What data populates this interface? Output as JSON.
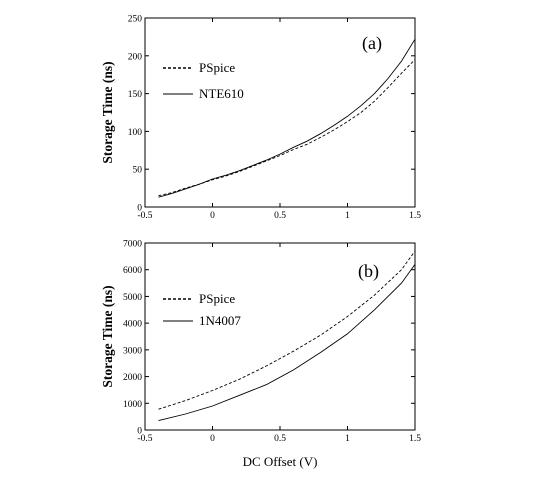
{
  "figure": {
    "xlabel": "DC Offset (V)"
  },
  "chart_data": [
    {
      "type": "line",
      "panel_label": "(a)",
      "xlabel": "",
      "ylabel": "Storage Time (ns)",
      "xlim": [
        -0.5,
        1.5
      ],
      "ylim": [
        0,
        250
      ],
      "xticks": [
        "-0.5",
        "0",
        "0.5",
        "1",
        "1.5"
      ],
      "yticks": [
        "0",
        "50",
        "100",
        "150",
        "200",
        "250"
      ],
      "grid": false,
      "legend_position": "upper-left",
      "series": [
        {
          "name": "PSpice",
          "style": "dashed",
          "x": [
            -0.4,
            -0.3,
            -0.2,
            -0.1,
            0,
            0.1,
            0.2,
            0.3,
            0.4,
            0.5,
            0.6,
            0.7,
            0.8,
            0.9,
            1.0,
            1.1,
            1.2,
            1.3,
            1.4,
            1.5
          ],
          "y": [
            15,
            19,
            25,
            30,
            36,
            41,
            47,
            54,
            61,
            68,
            76,
            83,
            92,
            102,
            113,
            125,
            140,
            158,
            177,
            195
          ]
        },
        {
          "name": "NTE610",
          "style": "solid",
          "x": [
            -0.4,
            -0.3,
            -0.2,
            -0.1,
            0,
            0.1,
            0.2,
            0.3,
            0.4,
            0.5,
            0.6,
            0.7,
            0.8,
            0.9,
            1.0,
            1.1,
            1.2,
            1.3,
            1.4,
            1.5
          ],
          "y": [
            13,
            18,
            24,
            30,
            37,
            42,
            48,
            55,
            62,
            70,
            79,
            87,
            97,
            108,
            120,
            134,
            150,
            170,
            193,
            222
          ]
        }
      ]
    },
    {
      "type": "line",
      "panel_label": "(b)",
      "xlabel": "DC Offset (V)",
      "ylabel": "Storage Time (ns)",
      "xlim": [
        -0.5,
        1.5
      ],
      "ylim": [
        0,
        7000
      ],
      "xticks": [
        "-0.5",
        "0",
        "0.5",
        "1",
        "1.5"
      ],
      "yticks": [
        "0",
        "1000",
        "2000",
        "3000",
        "4000",
        "5000",
        "6000",
        "7000"
      ],
      "grid": false,
      "legend_position": "upper-left",
      "series": [
        {
          "name": "PSpice",
          "style": "dashed",
          "x": [
            -0.4,
            -0.2,
            0,
            0.2,
            0.4,
            0.6,
            0.8,
            1.0,
            1.2,
            1.4,
            1.5
          ],
          "y": [
            780,
            1100,
            1480,
            1900,
            2400,
            2950,
            3550,
            4250,
            5050,
            6000,
            6700
          ]
        },
        {
          "name": "1N4007",
          "style": "solid",
          "x": [
            -0.4,
            -0.2,
            0,
            0.2,
            0.4,
            0.6,
            0.8,
            1.0,
            1.2,
            1.4,
            1.5
          ],
          "y": [
            350,
            600,
            900,
            1300,
            1700,
            2250,
            2900,
            3600,
            4500,
            5500,
            6200
          ]
        }
      ]
    }
  ]
}
